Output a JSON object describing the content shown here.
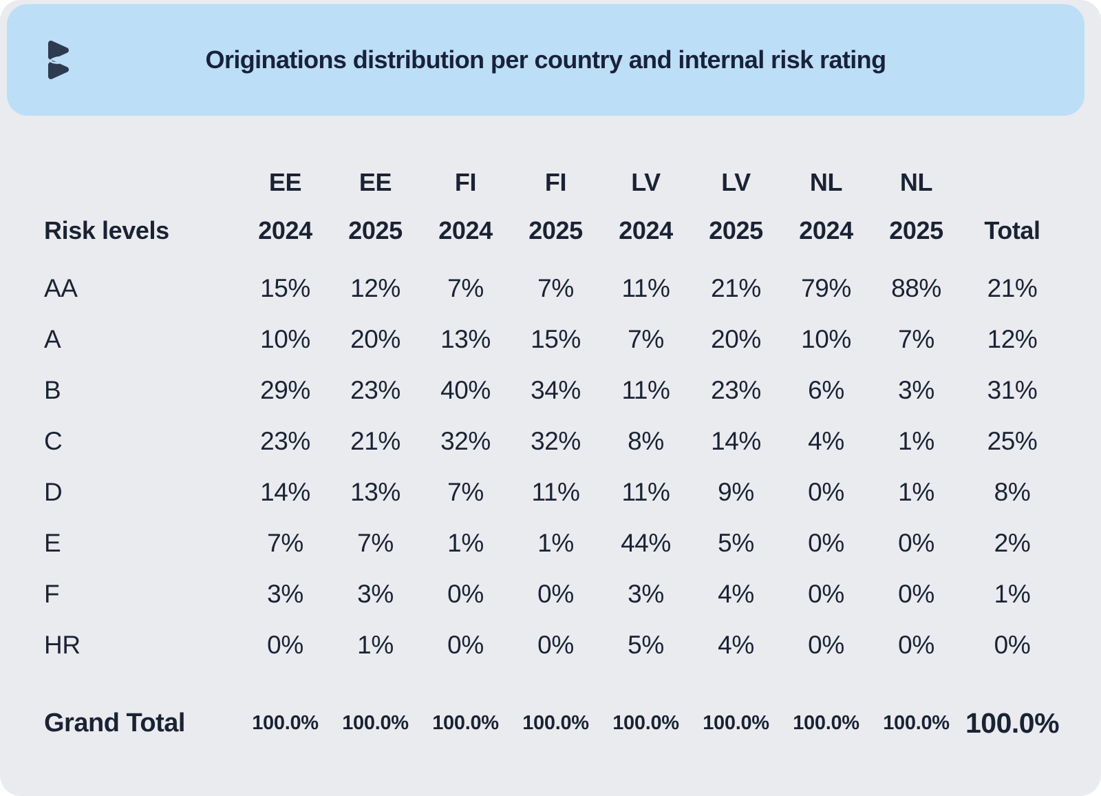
{
  "header": {
    "title": "Originations distribution per country and internal risk rating"
  },
  "colors": {
    "header_bg": "#bcdef6",
    "card_bg": "#eaebef",
    "text": "#1a2334",
    "logo_navy": "#2e3a50"
  },
  "icons": {
    "logo": "bigbank-logo"
  },
  "chart_data": {
    "type": "table",
    "title": "Originations distribution per country and internal risk rating",
    "corner_label": "Risk levels",
    "total_label": "Total",
    "columns": [
      {
        "country": "EE",
        "year": "2024"
      },
      {
        "country": "EE",
        "year": "2025"
      },
      {
        "country": "FI",
        "year": "2024"
      },
      {
        "country": "FI",
        "year": "2025"
      },
      {
        "country": "LV",
        "year": "2024"
      },
      {
        "country": "LV",
        "year": "2025"
      },
      {
        "country": "NL",
        "year": "2024"
      },
      {
        "country": "NL",
        "year": "2025"
      }
    ],
    "rows": [
      {
        "label": "AA",
        "values": [
          "15%",
          "12%",
          "7%",
          "7%",
          "11%",
          "21%",
          "79%",
          "88%"
        ],
        "total": "21%"
      },
      {
        "label": "A",
        "values": [
          "10%",
          "20%",
          "13%",
          "15%",
          "7%",
          "20%",
          "10%",
          "7%"
        ],
        "total": "12%"
      },
      {
        "label": "B",
        "values": [
          "29%",
          "23%",
          "40%",
          "34%",
          "11%",
          "23%",
          "6%",
          "3%"
        ],
        "total": "31%"
      },
      {
        "label": "C",
        "values": [
          "23%",
          "21%",
          "32%",
          "32%",
          "8%",
          "14%",
          "4%",
          "1%"
        ],
        "total": "25%"
      },
      {
        "label": "D",
        "values": [
          "14%",
          "13%",
          "7%",
          "11%",
          "11%",
          "9%",
          "0%",
          "1%"
        ],
        "total": "8%"
      },
      {
        "label": "E",
        "values": [
          "7%",
          "7%",
          "1%",
          "1%",
          "44%",
          "5%",
          "0%",
          "0%"
        ],
        "total": "2%"
      },
      {
        "label": "F",
        "values": [
          "3%",
          "3%",
          "0%",
          "0%",
          "3%",
          "4%",
          "0%",
          "0%"
        ],
        "total": "1%"
      },
      {
        "label": "HR",
        "values": [
          "0%",
          "1%",
          "0%",
          "0%",
          "5%",
          "4%",
          "0%",
          "0%"
        ],
        "total": "0%"
      }
    ],
    "grand_total": {
      "label": "Grand Total",
      "values": [
        "100.0%",
        "100.0%",
        "100.0%",
        "100.0%",
        "100.0%",
        "100.0%",
        "100.0%",
        "100.0%"
      ],
      "total": "100.0%"
    }
  }
}
